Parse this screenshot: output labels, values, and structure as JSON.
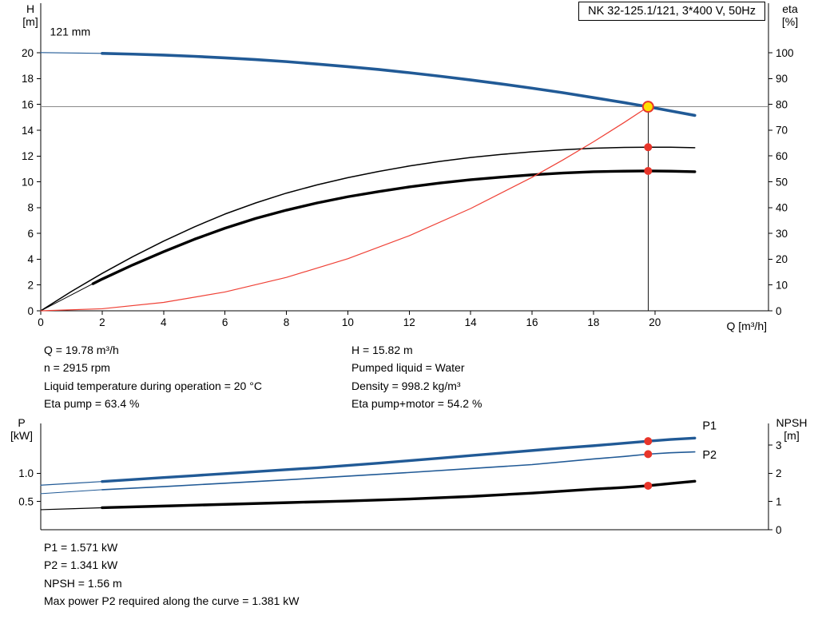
{
  "header": {
    "title_box": "NK 32-125.1/121, 3*400 V, 50Hz"
  },
  "axis_labels": {
    "top_left_1": "H",
    "top_left_2": "[m]",
    "top_right_1": "eta",
    "top_right_2": "[%]",
    "x_label": "Q [m³/h]",
    "bottom_left_1": "P",
    "bottom_left_2": "[kW]",
    "bottom_right_1": "NPSH",
    "bottom_right_2": "[m]"
  },
  "info_top": {
    "left": [
      "Q = 19.78 m³/h",
      "n = 2915 rpm",
      "Liquid temperature during operation = 20 °C",
      "Eta pump = 63.4 %"
    ],
    "right": [
      "H = 15.82 m",
      "Pumped liquid = Water",
      "Density = 998.2 kg/m³",
      "Eta pump+motor = 54.2 %"
    ]
  },
  "info_bottom": [
    "P1 = 1.571 kW",
    "P2 = 1.341 kW",
    "NPSH = 1.56 m",
    "Max power P2 required along the curve = 1.381 kW"
  ],
  "colors": {
    "curve_blue": "#215a96",
    "red": "#e8352a",
    "duty_yellow": "#ffdf00",
    "gray_line": "#8a8a8a"
  },
  "chart_data": [
    {
      "type": "line",
      "title": "NK 32-125.1/121, 3*400 V, 50Hz",
      "xlabel": "Q [m³/h]",
      "x_range": [
        0,
        23.7
      ],
      "x_ticks": [
        [
          0,
          "0"
        ],
        [
          2,
          "2"
        ],
        [
          4,
          "4"
        ],
        [
          6,
          "6"
        ],
        [
          8,
          "8"
        ],
        [
          10,
          "10"
        ],
        [
          12,
          "12"
        ],
        [
          14,
          "14"
        ],
        [
          16,
          "16"
        ],
        [
          18,
          "18"
        ],
        [
          20,
          "20"
        ]
      ],
      "y_left": {
        "label": "H [m]",
        "range": [
          0,
          23.85
        ],
        "ticks": [
          [
            0,
            "0"
          ],
          [
            2,
            "2"
          ],
          [
            4,
            "4"
          ],
          [
            6,
            "6"
          ],
          [
            8,
            "8"
          ],
          [
            10,
            "10"
          ],
          [
            12,
            "12"
          ],
          [
            14,
            "14"
          ],
          [
            16,
            "16"
          ],
          [
            18,
            "18"
          ],
          [
            20,
            "20"
          ]
        ]
      },
      "y_right": {
        "label": "eta [%]",
        "range": [
          0,
          119.2
        ],
        "ticks": [
          [
            0,
            "0"
          ],
          [
            10,
            "10"
          ],
          [
            20,
            "20"
          ],
          [
            30,
            "30"
          ],
          [
            40,
            "40"
          ],
          [
            50,
            "50"
          ],
          [
            60,
            "60"
          ],
          [
            70,
            "70"
          ],
          [
            80,
            "80"
          ],
          [
            90,
            "90"
          ],
          [
            100,
            "100"
          ]
        ]
      },
      "series": [
        {
          "name": "pump-curve-lead",
          "axis": "left",
          "color": "#215a96",
          "width": 1.2,
          "points": [
            [
              0,
              20.02
            ],
            [
              1,
              19.99
            ],
            [
              2,
              19.96
            ]
          ]
        },
        {
          "name": "pump-curve-121mm",
          "axis": "left",
          "color": "#215a96",
          "width": 3.6,
          "points": [
            [
              2,
              19.96
            ],
            [
              3,
              19.9
            ],
            [
              4,
              19.83
            ],
            [
              5,
              19.73
            ],
            [
              6,
              19.61
            ],
            [
              7,
              19.48
            ],
            [
              8,
              19.32
            ],
            [
              9,
              19.13
            ],
            [
              10,
              18.93
            ],
            [
              11,
              18.71
            ],
            [
              12,
              18.46
            ],
            [
              13,
              18.19
            ],
            [
              14,
              17.9
            ],
            [
              15,
              17.59
            ],
            [
              16,
              17.26
            ],
            [
              17,
              16.91
            ],
            [
              18,
              16.53
            ],
            [
              19,
              16.14
            ],
            [
              19.78,
              15.82
            ],
            [
              20.5,
              15.5
            ],
            [
              21.3,
              15.15
            ]
          ]
        },
        {
          "name": "eta-pump-curve",
          "axis": "right",
          "color": "#000000",
          "width": 1.5,
          "points": [
            [
              0,
              0
            ],
            [
              1,
              7.5
            ],
            [
              2,
              14.5
            ],
            [
              3,
              21
            ],
            [
              4,
              27
            ],
            [
              5,
              32.5
            ],
            [
              6,
              37.5
            ],
            [
              7,
              41.8
            ],
            [
              8,
              45.6
            ],
            [
              9,
              48.8
            ],
            [
              10,
              51.6
            ],
            [
              11,
              54
            ],
            [
              12,
              56.1
            ],
            [
              13,
              57.9
            ],
            [
              14,
              59.4
            ],
            [
              15,
              60.6
            ],
            [
              16,
              61.6
            ],
            [
              17,
              62.4
            ],
            [
              18,
              63
            ],
            [
              19,
              63.3
            ],
            [
              19.78,
              63.4
            ],
            [
              20.5,
              63.4
            ],
            [
              21.3,
              63.2
            ]
          ]
        },
        {
          "name": "eta-pump-motor-lead",
          "axis": "right",
          "color": "#000000",
          "width": 1,
          "points": [
            [
              0,
              0
            ],
            [
              1.7,
              10.5
            ]
          ]
        },
        {
          "name": "eta-pump-motor-curve",
          "axis": "right",
          "color": "#000000",
          "width": 3.4,
          "points": [
            [
              1.7,
              10.5
            ],
            [
              2,
              12.3
            ],
            [
              3,
              17.8
            ],
            [
              4,
              22.9
            ],
            [
              5,
              27.7
            ],
            [
              6,
              32
            ],
            [
              7,
              35.8
            ],
            [
              8,
              39
            ],
            [
              9,
              41.8
            ],
            [
              10,
              44.2
            ],
            [
              11,
              46.2
            ],
            [
              12,
              48
            ],
            [
              13,
              49.5
            ],
            [
              14,
              50.8
            ],
            [
              15,
              51.8
            ],
            [
              16,
              52.7
            ],
            [
              17,
              53.4
            ],
            [
              18,
              53.9
            ],
            [
              19,
              54.1
            ],
            [
              19.78,
              54.2
            ],
            [
              20.5,
              54.1
            ],
            [
              21.3,
              53.9
            ]
          ]
        },
        {
          "name": "system-curve",
          "axis": "left",
          "color": "#ef4136",
          "width": 1.2,
          "points": [
            [
              0,
              0
            ],
            [
              2,
              0.16
            ],
            [
              4,
              0.65
            ],
            [
              6,
              1.46
            ],
            [
              8,
              2.59
            ],
            [
              10,
              4.04
            ],
            [
              12,
              5.82
            ],
            [
              14,
              7.93
            ],
            [
              16,
              10.35
            ],
            [
              17,
              11.69
            ],
            [
              18,
              13.1
            ],
            [
              19,
              14.6
            ],
            [
              19.78,
              15.82
            ]
          ]
        }
      ],
      "annotation_lines": [
        {
          "type": "h",
          "axis": "left",
          "y": 15.82,
          "x1": 0,
          "x2": 23.7,
          "color": "#8a8a8a",
          "width": 1
        },
        {
          "type": "v",
          "axis": "left",
          "x": 19.78,
          "y1": 0,
          "y2": 15.82,
          "color": "#1a1a1a",
          "width": 1
        }
      ],
      "markers": [
        {
          "name": "duty-point",
          "x": 19.78,
          "y": 15.82,
          "axis": "left",
          "r": 6.5,
          "fill": "#ffdf00",
          "stroke": "#e8352a",
          "stroke_width": 2,
          "interactable": "true"
        },
        {
          "name": "eta-pump-point",
          "x": 19.78,
          "y": 63.4,
          "axis": "right",
          "r": 5,
          "fill": "#e8352a",
          "stroke": "none",
          "stroke_width": 0,
          "interactable": "false"
        },
        {
          "name": "eta-pump-motor-point",
          "x": 19.78,
          "y": 54.2,
          "axis": "right",
          "r": 5,
          "fill": "#e8352a",
          "stroke": "none",
          "stroke_width": 0,
          "interactable": "false"
        }
      ],
      "labels": [
        {
          "text": "121 mm",
          "x": 0.3,
          "y": 21.35,
          "axis": "left",
          "color": "#000000",
          "size": 14,
          "anchor": "start"
        }
      ],
      "duty_point": {
        "Q": 19.78,
        "H": 15.82,
        "eta_pump": 63.4,
        "eta_pump_motor": 54.2
      }
    },
    {
      "type": "line",
      "title": "Power and NPSH curves",
      "xlabel": "",
      "x_range": [
        0,
        23.7
      ],
      "x_ticks": [],
      "y_left": {
        "label": "P [kW]",
        "range": [
          0,
          1.885
        ],
        "ticks": [
          [
            0.5,
            "0.5"
          ],
          [
            1,
            "1.0"
          ]
        ]
      },
      "y_right": {
        "label": "NPSH [m]",
        "range": [
          0,
          3.77
        ],
        "ticks": [
          [
            0,
            "0"
          ],
          [
            1,
            "1"
          ],
          [
            2,
            "2"
          ],
          [
            3,
            "3"
          ]
        ]
      },
      "series": [
        {
          "name": "p1-lead",
          "axis": "left",
          "color": "#215a96",
          "width": 1.2,
          "points": [
            [
              0,
              0.79
            ],
            [
              1,
              0.822
            ],
            [
              2,
              0.855
            ]
          ]
        },
        {
          "name": "p1-curve",
          "axis": "left",
          "color": "#215a96",
          "width": 3.4,
          "points": [
            [
              2,
              0.855
            ],
            [
              3,
              0.89
            ],
            [
              4,
              0.925
            ],
            [
              5,
              0.96
            ],
            [
              6,
              0.995
            ],
            [
              7,
              1.03
            ],
            [
              8,
              1.065
            ],
            [
              9,
              1.1
            ],
            [
              10,
              1.14
            ],
            [
              11,
              1.18
            ],
            [
              12,
              1.225
            ],
            [
              13,
              1.27
            ],
            [
              14,
              1.315
            ],
            [
              15,
              1.36
            ],
            [
              16,
              1.405
            ],
            [
              17,
              1.45
            ],
            [
              18,
              1.49
            ],
            [
              19,
              1.535
            ],
            [
              19.78,
              1.571
            ],
            [
              20.5,
              1.6
            ],
            [
              21.3,
              1.625
            ]
          ]
        },
        {
          "name": "p2-lead",
          "axis": "left",
          "color": "#215a96",
          "width": 1,
          "points": [
            [
              0,
              0.64
            ],
            [
              1,
              0.675
            ],
            [
              2,
              0.71
            ]
          ]
        },
        {
          "name": "p2-curve",
          "axis": "left",
          "color": "#215a96",
          "width": 1.6,
          "points": [
            [
              2,
              0.71
            ],
            [
              4,
              0.765
            ],
            [
              6,
              0.825
            ],
            [
              8,
              0.885
            ],
            [
              10,
              0.95
            ],
            [
              12,
              1.015
            ],
            [
              14,
              1.085
            ],
            [
              16,
              1.155
            ],
            [
              18,
              1.255
            ],
            [
              19,
              1.3
            ],
            [
              19.78,
              1.341
            ],
            [
              20.5,
              1.365
            ],
            [
              21.3,
              1.381
            ]
          ]
        },
        {
          "name": "npsh-lead",
          "axis": "right",
          "color": "#000000",
          "width": 1.2,
          "points": [
            [
              0,
              0.71
            ],
            [
              1,
              0.745
            ],
            [
              2,
              0.78
            ]
          ]
        },
        {
          "name": "npsh-curve",
          "axis": "right",
          "color": "#000000",
          "width": 3.4,
          "points": [
            [
              2,
              0.78
            ],
            [
              4,
              0.84
            ],
            [
              6,
              0.9
            ],
            [
              8,
              0.96
            ],
            [
              10,
              1.02
            ],
            [
              12,
              1.09
            ],
            [
              14,
              1.18
            ],
            [
              16,
              1.3
            ],
            [
              17,
              1.37
            ],
            [
              18,
              1.44
            ],
            [
              19,
              1.5
            ],
            [
              19.78,
              1.56
            ],
            [
              20.5,
              1.64
            ],
            [
              21.3,
              1.72
            ]
          ]
        }
      ],
      "annotation_lines": [],
      "markers": [
        {
          "name": "p1-point",
          "x": 19.78,
          "y": 1.571,
          "axis": "left",
          "r": 5,
          "fill": "#e8352a",
          "stroke": "none",
          "stroke_width": 0,
          "interactable": "false"
        },
        {
          "name": "p2-point",
          "x": 19.78,
          "y": 1.341,
          "axis": "left",
          "r": 5,
          "fill": "#e8352a",
          "stroke": "none",
          "stroke_width": 0,
          "interactable": "false"
        },
        {
          "name": "npsh-point",
          "x": 19.78,
          "y": 1.56,
          "axis": "right",
          "r": 5,
          "fill": "#e8352a",
          "stroke": "none",
          "stroke_width": 0,
          "interactable": "false"
        }
      ],
      "labels": [
        {
          "text": "P1",
          "x": 21.55,
          "y": 1.78,
          "axis": "left",
          "color": "#215a96",
          "size": 14.5,
          "anchor": "start"
        },
        {
          "text": "P2",
          "x": 21.55,
          "y": 1.26,
          "axis": "left",
          "color": "#215a96",
          "size": 14.5,
          "anchor": "start"
        }
      ],
      "duty_point": {
        "Q": 19.78,
        "P1": 1.571,
        "P2": 1.341,
        "NPSH": 1.56
      }
    }
  ]
}
